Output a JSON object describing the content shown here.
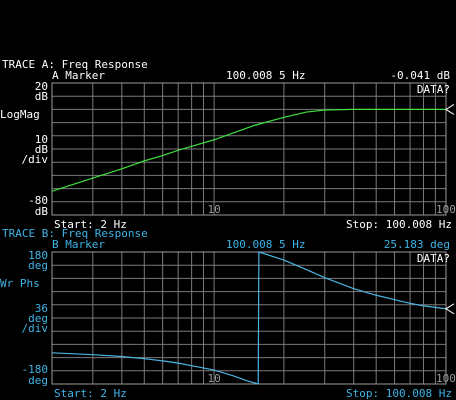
{
  "chart_data": [
    {
      "type": "line",
      "header": "TRACE A: Freq Response",
      "marker_label": "A Marker",
      "marker_freq": "100.008 5 Hz",
      "marker_value": "-0.041 dB",
      "unit": "dB",
      "format": "LogMag",
      "scale_per_div": 10,
      "per_div": "/div",
      "status": "DATA?",
      "start": "Start: 2 Hz",
      "stop": "Stop: 100.008 Hz",
      "text_color": "#ffffff",
      "xscale": "log",
      "xlim": [
        2,
        100.008
      ],
      "xticks": [
        10,
        100
      ],
      "xgrid": [
        3,
        4,
        5,
        6,
        7,
        8,
        9,
        10,
        20,
        30,
        40,
        50,
        60,
        70,
        80,
        90
      ],
      "ylim": [
        -80,
        20
      ],
      "ygrid": [
        -70,
        -60,
        -50,
        -40,
        -30,
        -20,
        -10,
        0,
        10
      ],
      "x": [
        2,
        3,
        4,
        5,
        6,
        7,
        8,
        10,
        12,
        15,
        20,
        25,
        30,
        40,
        50,
        60,
        70,
        80,
        90,
        100.008
      ],
      "series": [
        {
          "color": "#3ee03e",
          "values": [
            -62,
            -52,
            -45,
            -39,
            -35,
            -31,
            -28,
            -23,
            -18,
            -12,
            -6,
            -2,
            -0.5,
            0,
            0,
            0,
            0,
            0,
            0,
            -0.041
          ]
        }
      ]
    },
    {
      "type": "line",
      "header": "TRACE B: Freq Response",
      "marker_label": "B Marker",
      "marker_freq": "100.008 5 Hz",
      "marker_value": "25.183  deg",
      "unit": "deg",
      "format": "Wr Phs",
      "scale_per_div": 36,
      "per_div": "/div",
      "status": "DATA?",
      "start": "Start: 2 Hz",
      "stop": "Stop: 100.008 Hz",
      "text_color": "#3fb4e6",
      "xscale": "log",
      "xlim": [
        2,
        100.008
      ],
      "xticks": [
        10,
        100
      ],
      "xgrid": [
        3,
        4,
        5,
        6,
        7,
        8,
        9,
        10,
        20,
        30,
        40,
        50,
        60,
        70,
        80,
        90
      ],
      "ylim": [
        -180,
        180
      ],
      "ygrid": [
        -144,
        -108,
        -72,
        -36,
        0,
        36,
        72,
        108,
        144
      ],
      "x": [
        2,
        3,
        4,
        5,
        6,
        7,
        8,
        10,
        12,
        14,
        15.5,
        15.6,
        20,
        25,
        30,
        40,
        50,
        60,
        70,
        80,
        90,
        100.008
      ],
      "series": [
        {
          "color": "#4ab4e4",
          "values": [
            -95,
            -100,
            -105,
            -111,
            -117,
            -123,
            -130,
            -142,
            -157,
            -172,
            -180,
            180,
            158,
            132,
            110,
            80,
            62,
            50,
            40,
            33,
            29,
            25.183
          ]
        }
      ]
    }
  ]
}
